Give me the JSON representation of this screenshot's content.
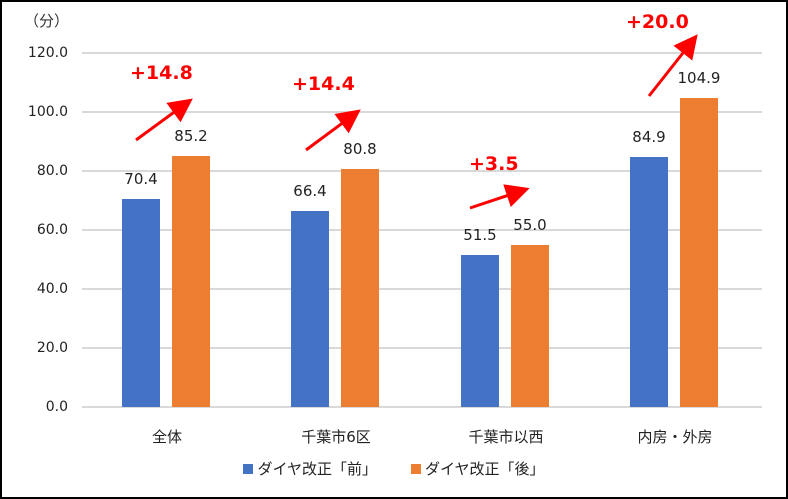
{
  "chart_data": {
    "type": "bar",
    "title": "",
    "unit_label": "（分）",
    "xlabel": "",
    "ylabel": "（分）",
    "ylim": [
      0,
      120
    ],
    "yticks": [
      "0.0",
      "20.0",
      "40.0",
      "60.0",
      "80.0",
      "100.0",
      "120.0"
    ],
    "grid": true,
    "legend_position": "bottom",
    "categories": [
      "全体",
      "千葉市6区",
      "千葉市以西",
      "内房・外房"
    ],
    "series": [
      {
        "name": "ダイヤ改正「前」",
        "color": "#4472c4",
        "values": [
          70.4,
          66.4,
          51.5,
          84.9
        ],
        "labels": [
          "70.4",
          "66.4",
          "51.5",
          "84.9"
        ]
      },
      {
        "name": "ダイヤ改正「後」",
        "color": "#ed7d31",
        "values": [
          85.2,
          80.8,
          55.0,
          104.9
        ],
        "labels": [
          "85.2",
          "80.8",
          "55.0",
          "104.9"
        ]
      }
    ],
    "annotations": [
      "+14.8",
      "+14.4",
      "+3.5",
      "+20.0"
    ],
    "annotation_color": "#ff0000"
  }
}
